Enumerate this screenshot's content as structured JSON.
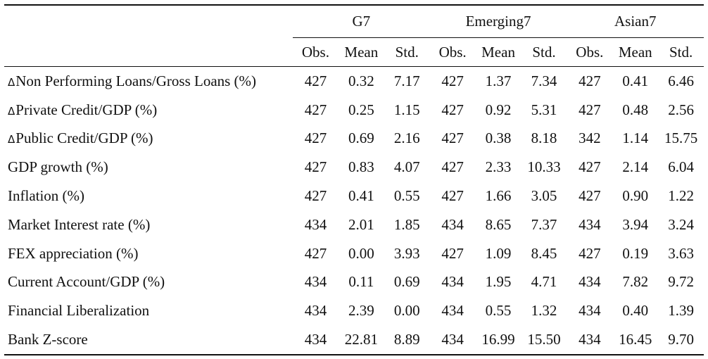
{
  "groups": [
    "G7",
    "Emerging7",
    "Asian7"
  ],
  "subheaders": [
    "Obs.",
    "Mean",
    "Std."
  ],
  "delta_symbol": "Δ",
  "rows": [
    {
      "label": "Non Performing Loans/Gross Loans (%)",
      "delta": true,
      "values": [
        "427",
        "0.32",
        "7.17",
        "427",
        "1.37",
        "7.34",
        "427",
        "0.41",
        "6.46"
      ]
    },
    {
      "label": "Private Credit/GDP (%)",
      "delta": true,
      "values": [
        "427",
        "0.25",
        "1.15",
        "427",
        "0.92",
        "5.31",
        "427",
        "0.48",
        "2.56"
      ]
    },
    {
      "label": "Public Credit/GDP (%)",
      "delta": true,
      "values": [
        "427",
        "0.69",
        "2.16",
        "427",
        "0.38",
        "8.18",
        "342",
        "1.14",
        "15.75"
      ]
    },
    {
      "label": "GDP growth (%)",
      "delta": false,
      "values": [
        "427",
        "0.83",
        "4.07",
        "427",
        "2.33",
        "10.33",
        "427",
        "2.14",
        "6.04"
      ]
    },
    {
      "label": "Inflation (%)",
      "delta": false,
      "values": [
        "427",
        "0.41",
        "0.55",
        "427",
        "1.66",
        "3.05",
        "427",
        "0.90",
        "1.22"
      ]
    },
    {
      "label": "Market Interest rate (%)",
      "delta": false,
      "values": [
        "434",
        "2.01",
        "1.85",
        "434",
        "8.65",
        "7.37",
        "434",
        "3.94",
        "3.24"
      ]
    },
    {
      "label": "FEX appreciation (%)",
      "delta": false,
      "values": [
        "427",
        "0.00",
        "3.93",
        "427",
        "1.09",
        "8.45",
        "427",
        "0.19",
        "3.63"
      ]
    },
    {
      "label": "Current Account/GDP (%)",
      "delta": false,
      "values": [
        "434",
        "0.11",
        "0.69",
        "434",
        "1.95",
        "4.71",
        "434",
        "7.82",
        "9.72"
      ]
    },
    {
      "label": "Financial Liberalization",
      "delta": false,
      "values": [
        "434",
        "2.39",
        "0.00",
        "434",
        "0.55",
        "1.32",
        "434",
        "0.40",
        "1.39"
      ]
    },
    {
      "label": "Bank Z-score",
      "delta": false,
      "values": [
        "434",
        "22.81",
        "8.89",
        "434",
        "16.99",
        "15.50",
        "434",
        "16.45",
        "9.70"
      ]
    }
  ]
}
